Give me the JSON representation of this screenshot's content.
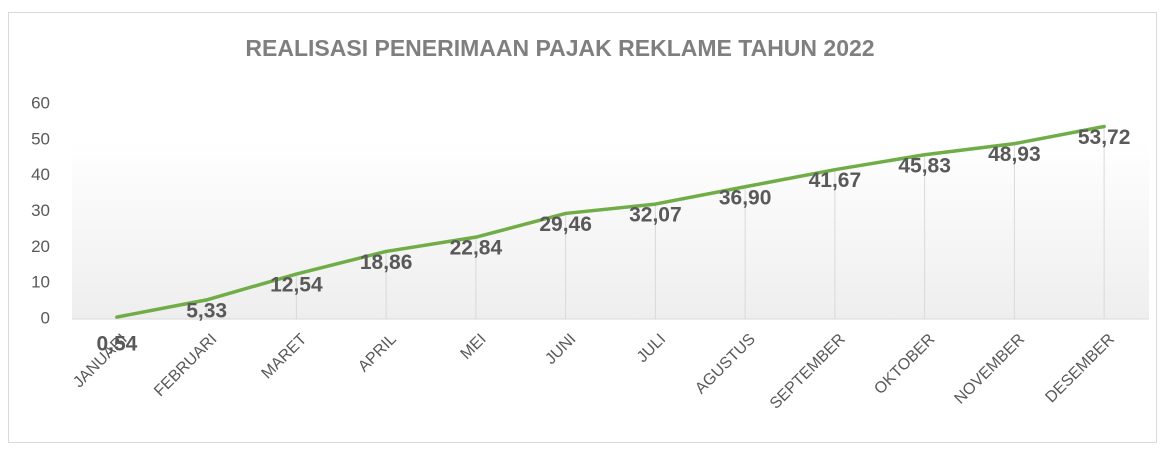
{
  "chart_data": {
    "type": "line",
    "title": "REALISASI PENERIMAAN PAJAK REKLAME TAHUN 2022",
    "categories": [
      "JANUARI",
      "FEBRUARI",
      "MARET",
      "APRIL",
      "MEI",
      "JUNI",
      "JULI",
      "AGUSTUS",
      "SEPTEMBER",
      "OKTOBER",
      "NOVEMBER",
      "DESEMBER"
    ],
    "values": [
      0.54,
      5.33,
      12.54,
      18.86,
      22.84,
      29.46,
      32.07,
      36.9,
      41.67,
      45.83,
      48.93,
      53.72
    ],
    "value_labels": [
      "0,54",
      "5,33",
      "12,54",
      "18,86",
      "22,84",
      "29,46",
      "32,07",
      "36,90",
      "41,67",
      "45,83",
      "48,93",
      "53,72"
    ],
    "color": "#70ad47",
    "ylim": [
      0,
      60
    ],
    "yticks": [
      0,
      10,
      20,
      30,
      40,
      50,
      60
    ],
    "grid": false,
    "drop_lines": true
  }
}
